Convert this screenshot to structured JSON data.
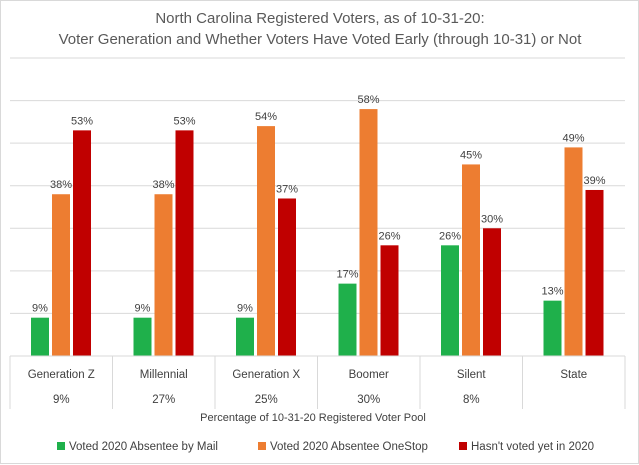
{
  "chart_data": {
    "type": "bar",
    "title_line1": "North Carolina Registered Voters, as of 10-31-20:",
    "title_line2": "Voter Generation and Whether Voters Have Voted Early (through 10-31) or Not",
    "categories": [
      "Generation Z",
      "Millennial",
      "Generation X",
      "Boomer",
      "Silent",
      "State"
    ],
    "pool_percentages": [
      "9%",
      "27%",
      "25%",
      "30%",
      "8%",
      ""
    ],
    "pool_label": "Percentage of 10-31-20  Registered Voter Pool",
    "ylim": [
      0,
      70
    ],
    "grid": true,
    "legend_position": "bottom",
    "series": [
      {
        "name": "Voted 2020 Absentee by Mail",
        "color": "#1fb04b",
        "values": [
          9,
          9,
          9,
          17,
          26,
          13
        ],
        "labels": [
          "9%",
          "9%",
          "9%",
          "17%",
          "26%",
          "13%"
        ]
      },
      {
        "name": "Voted 2020 Absentee OneStop",
        "color": "#ed7d31",
        "values": [
          38,
          38,
          54,
          58,
          45,
          49
        ],
        "labels": [
          "38%",
          "38%",
          "54%",
          "58%",
          "45%",
          "49%"
        ]
      },
      {
        "name": "Hasn't voted yet in 2020",
        "color": "#c00000",
        "values": [
          53,
          53,
          37,
          26,
          30,
          39
        ],
        "labels": [
          "53%",
          "53%",
          "37%",
          "26%",
          "30%",
          "39%"
        ]
      }
    ]
  }
}
